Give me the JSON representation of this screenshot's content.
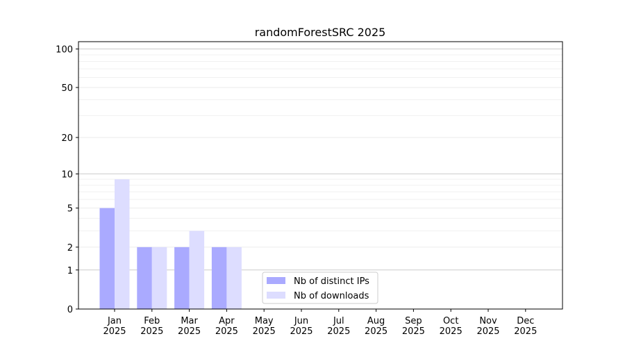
{
  "chart_data": {
    "type": "bar",
    "title": "randomForestSRC 2025",
    "xlabel": "",
    "ylabel": "",
    "yscale": "log(1+y)",
    "ylim": [
      0,
      114
    ],
    "grid": true,
    "legend_placement": "bottom-center",
    "categories": [
      "Jan\n2025",
      "Feb\n2025",
      "Mar\n2025",
      "Apr\n2025",
      "May\n2025",
      "Jun\n2025",
      "Jul\n2025",
      "Aug\n2025",
      "Sep\n2025",
      "Oct\n2025",
      "Nov\n2025",
      "Dec\n2025"
    ],
    "yticks": [
      0,
      1,
      2,
      5,
      10,
      20,
      50,
      100
    ],
    "series": [
      {
        "name": "Nb of distinct IPs",
        "color": "#aaaaff",
        "values": [
          5,
          2,
          2,
          2,
          0,
          0,
          0,
          0,
          0,
          0,
          0,
          0
        ]
      },
      {
        "name": "Nb of downloads",
        "color": "#ddddff",
        "values": [
          9,
          2,
          3,
          2,
          0,
          0,
          0,
          0,
          0,
          0,
          0,
          0
        ]
      }
    ]
  }
}
